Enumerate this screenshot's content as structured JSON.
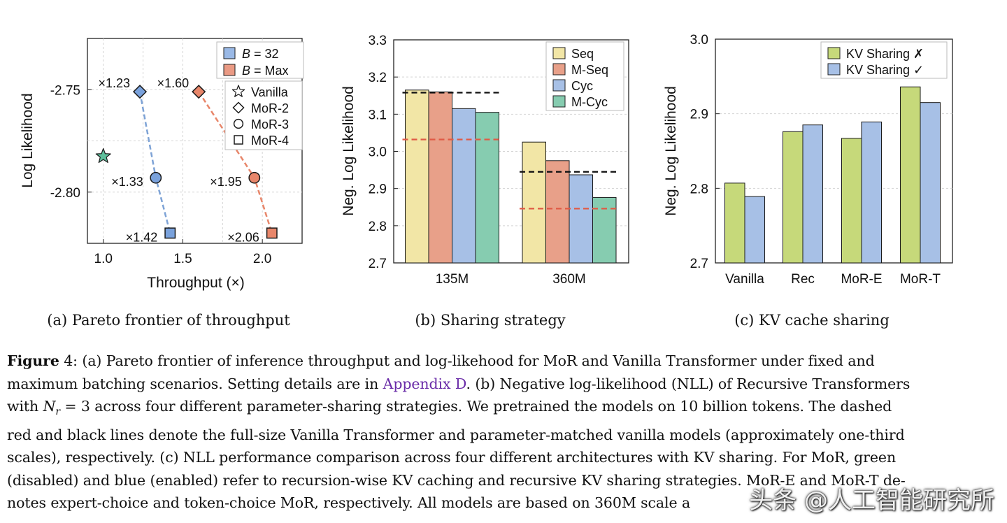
{
  "chart_data": [
    {
      "type": "scatter",
      "title": "",
      "caption": "(a) Pareto frontier of throughput",
      "xlabel": "Throughput (×)",
      "ylabel": "Log Likelihood",
      "xlim": [
        0.9,
        2.25
      ],
      "ylim": [
        -2.825,
        -2.725
      ],
      "xticks": [
        1.0,
        1.5,
        2.0
      ],
      "xtick_labels": [
        "1.0",
        "1.5",
        "2.0"
      ],
      "yticks": [
        -2.75,
        -2.8
      ],
      "ytick_labels": [
        "-2.75",
        "-2.80"
      ],
      "legend_position": "top-right",
      "legend_series": [
        {
          "label_prefix": "B",
          "label_suffix": " = 32",
          "color": "#9ab9e6"
        },
        {
          "label_prefix": "B",
          "label_suffix": " = Max",
          "color": "#ea9a84"
        }
      ],
      "legend_markers": [
        {
          "label": "Vanilla",
          "marker": "star"
        },
        {
          "label": "MoR-2",
          "marker": "diamond"
        },
        {
          "label": "MoR-3",
          "marker": "circle"
        },
        {
          "label": "MoR-4",
          "marker": "square"
        }
      ],
      "vanilla_point": {
        "x": 1.0,
        "y": -2.7825,
        "marker": "star",
        "color": "#5dbf9b"
      },
      "series": [
        {
          "name": "B = 32",
          "color": "#7aa2dc",
          "line_color": "#7ea3d6",
          "points": [
            {
              "x": 1.23,
              "y": -2.751,
              "marker": "diamond",
              "label": "×1.23"
            },
            {
              "x": 1.33,
              "y": -2.793,
              "marker": "circle",
              "label": "×1.33"
            },
            {
              "x": 1.42,
              "y": -2.82,
              "marker": "square",
              "label": "×1.42"
            }
          ]
        },
        {
          "name": "B = Max",
          "color": "#e8866a",
          "line_color": "#e8866a",
          "points": [
            {
              "x": 1.6,
              "y": -2.751,
              "marker": "diamond",
              "label": "×1.60"
            },
            {
              "x": 1.95,
              "y": -2.793,
              "marker": "circle",
              "label": "×1.95"
            },
            {
              "x": 2.06,
              "y": -2.82,
              "marker": "square",
              "label": "×2.06"
            }
          ]
        }
      ]
    },
    {
      "type": "bar",
      "title": "",
      "caption": "(b) Sharing strategy",
      "xlabel": "",
      "ylabel": "Neg. Log Likelihood",
      "ylim": [
        2.7,
        3.3
      ],
      "yticks": [
        "2.7",
        "2.8",
        "2.9",
        "3.0",
        "3.1",
        "3.2",
        "3.3"
      ],
      "categories": [
        "135M",
        "360M"
      ],
      "legend_position": "top-right",
      "series": [
        {
          "name": "Seq",
          "color": "#f2e6a6",
          "values": [
            3.165,
            3.025
          ]
        },
        {
          "name": "M-Seq",
          "color": "#e8a089",
          "values": [
            3.16,
            2.975
          ]
        },
        {
          "name": "Cyc",
          "color": "#a7c0e6",
          "values": [
            3.115,
            2.937
          ]
        },
        {
          "name": "M-Cyc",
          "color": "#86ccb0",
          "values": [
            3.105,
            2.876
          ]
        }
      ],
      "reference_lines": [
        {
          "category": "135M",
          "color": "#111111",
          "value": 3.158
        },
        {
          "category": "135M",
          "color": "#e05a45",
          "value": 3.032
        },
        {
          "category": "360M",
          "color": "#111111",
          "value": 2.945
        },
        {
          "category": "360M",
          "color": "#e05a45",
          "value": 2.846
        }
      ]
    },
    {
      "type": "bar",
      "title": "",
      "caption": "(c) KV cache sharing",
      "xlabel": "",
      "ylabel": "Neg. Log Likelihood",
      "ylim": [
        2.7,
        3.0
      ],
      "yticks": [
        "2.7",
        "2.8",
        "2.9",
        "3.0"
      ],
      "categories": [
        "Vanilla",
        "Rec",
        "MoR-E",
        "MoR-T"
      ],
      "legend_position": "top-right",
      "series": [
        {
          "name": "KV Sharing ✗",
          "color": "#c6d97a",
          "values": [
            2.807,
            2.876,
            2.867,
            2.936
          ]
        },
        {
          "name": "KV Sharing ✓",
          "color": "#a7c0e6",
          "values": [
            2.789,
            2.885,
            2.889,
            2.915
          ]
        }
      ]
    }
  ],
  "caption": {
    "figure_label": "Figure",
    "figure_number": " 4:",
    "line1": " (a) Pareto frontier of inference throughput and log-likehood for MoR and Vanilla Transformer under fixed and",
    "line2_a": "maximum batching scenarios. Setting details are in ",
    "line2_link": "Appendix D",
    "line2_b": ". (b) Negative log-likelihood (NLL) of Recursive Transformers",
    "line3_a": "with ",
    "line3_math": "N",
    "line3_sub": "r",
    "line3_eq": " = 3",
    "line3_b": " across four different parameter-sharing strategies. We pretrained the models on 10 billion tokens. The dashed",
    "line4": "red and black lines denote the full-size Vanilla Transformer and parameter-matched vanilla models (approximately one-third",
    "line5": "scales), respectively. (c) NLL performance comparison across four different architectures with KV sharing. For MoR, green",
    "line6": "(disabled) and blue (enabled) refer to recursion-wise KV caching and recursive KV sharing strategies. MoR-E and MoR-T de-",
    "line7": "notes expert-choice and token-choice MoR, respectively. All models are based on 360M scale a"
  },
  "watermark": "头条 @人工智能研究所"
}
